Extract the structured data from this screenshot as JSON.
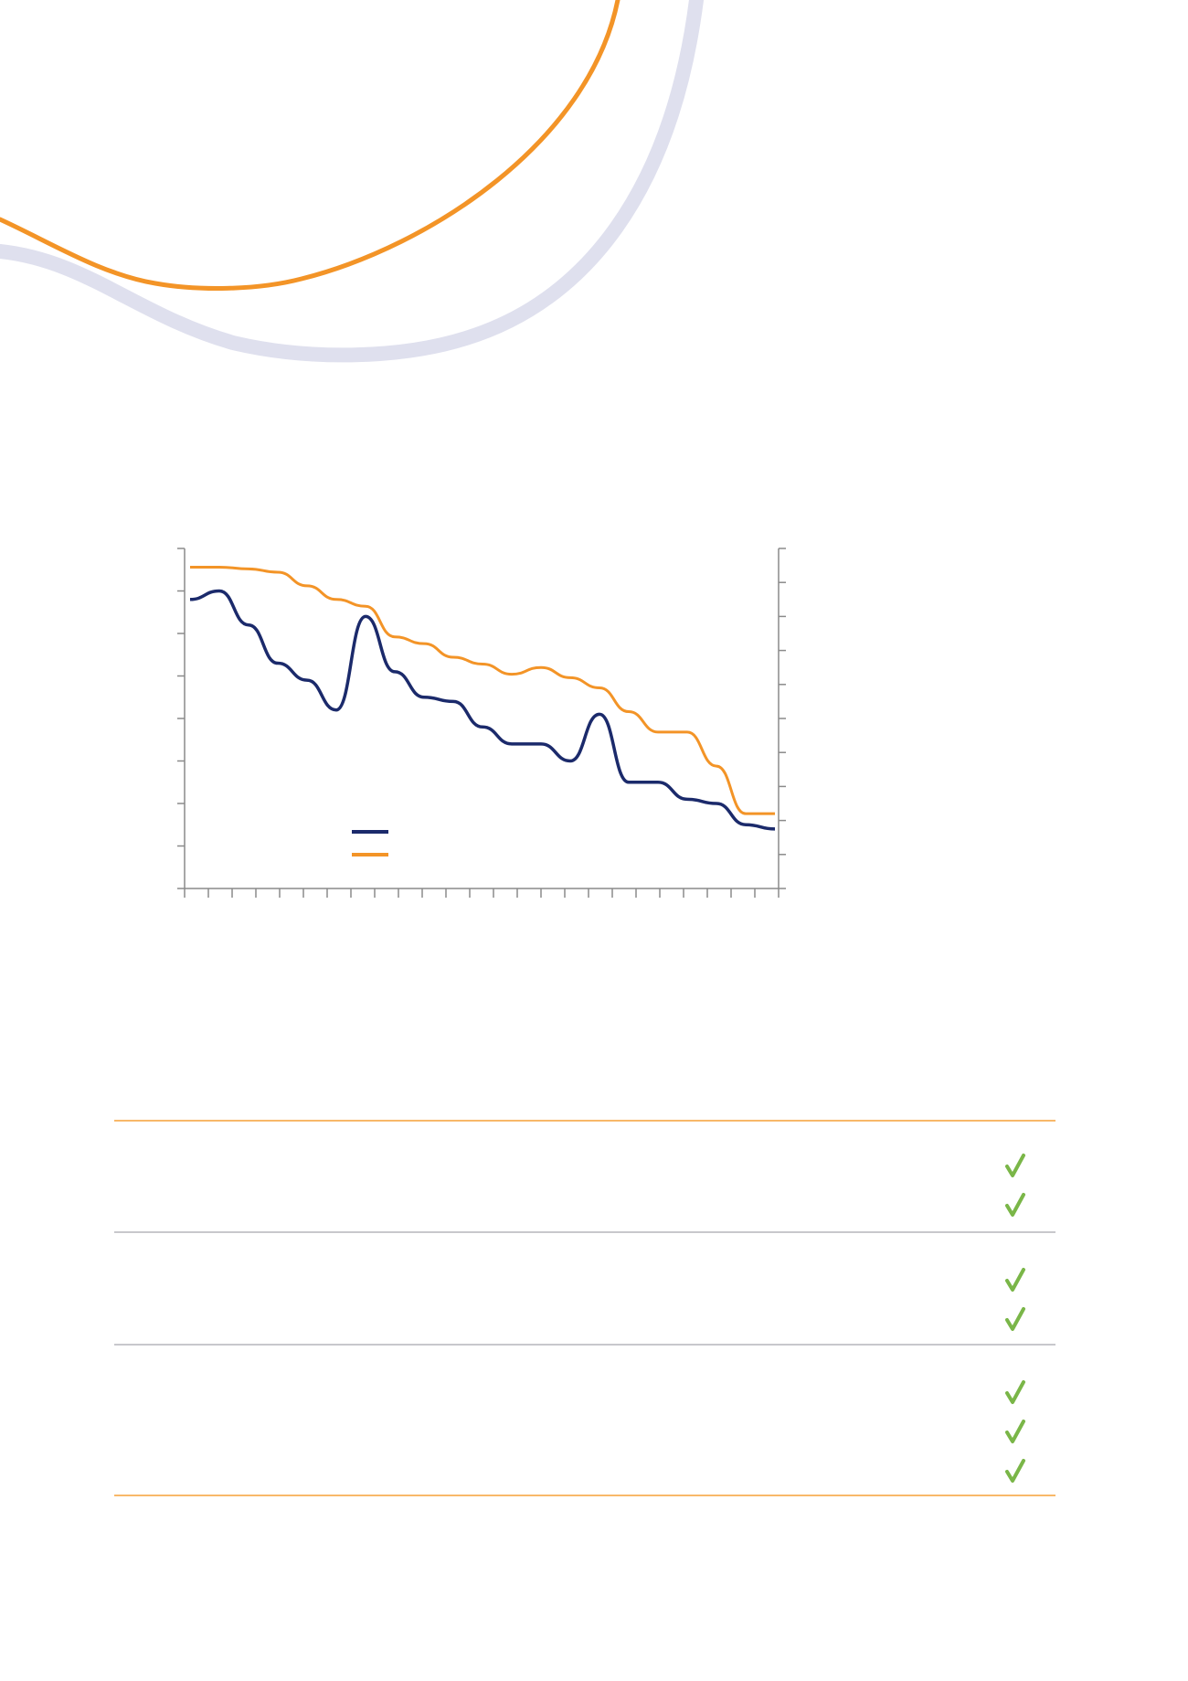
{
  "colors": {
    "navy": "#1b2a6b",
    "orange": "#f39427",
    "lavender": "#dfe0ee",
    "check_green": "#7ab648",
    "axis_grey": "#8a8a8a"
  },
  "icons": {
    "check": "checkmark-icon"
  },
  "chart_data": {
    "type": "line",
    "title": "",
    "xlabel": "",
    "ylabel_left": "",
    "ylabel_right": "",
    "x_ticks": 26,
    "y_left_ticks": 9,
    "y_right_ticks": 11,
    "legend": {
      "placement": "lower-middle",
      "entries": 2
    },
    "grid": false,
    "series": [
      {
        "color": "#1b2a6b",
        "axis": "left",
        "values": [
          6.8,
          7.0,
          6.2,
          5.3,
          4.9,
          4.2,
          6.4,
          5.1,
          4.5,
          4.4,
          3.8,
          3.4,
          3.4,
          3.0,
          4.1,
          2.5,
          2.5,
          2.1,
          2.0,
          1.5,
          1.4
        ]
      },
      {
        "color": "#f39427",
        "axis": "right",
        "values": [
          9.45,
          9.45,
          9.4,
          9.3,
          8.9,
          8.5,
          8.3,
          7.4,
          7.2,
          6.8,
          6.6,
          6.3,
          6.5,
          6.2,
          5.9,
          5.2,
          4.6,
          4.6,
          3.6,
          2.2,
          2.2
        ]
      }
    ]
  },
  "table": {
    "rows": [
      {
        "checks": 2
      },
      {
        "checks": 2
      },
      {
        "checks": 3
      }
    ]
  }
}
